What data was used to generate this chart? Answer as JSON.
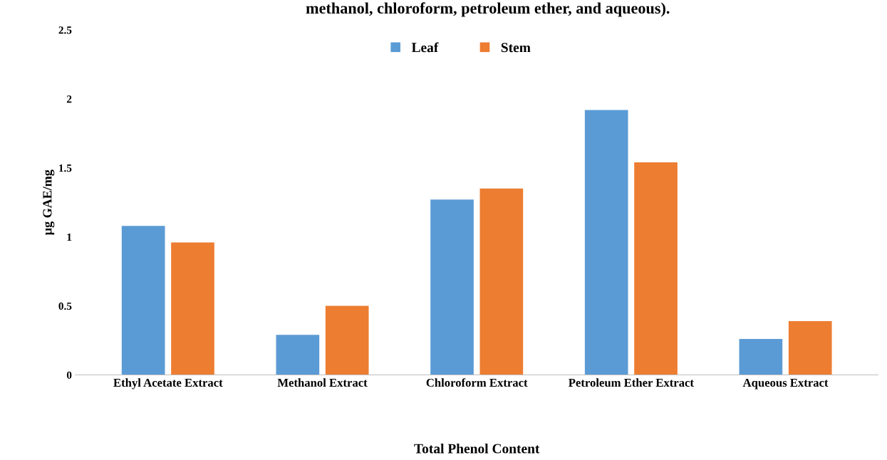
{
  "chart_data": {
    "type": "bar",
    "title": "methanol, chloroform, petroleum ether, and aqueous).",
    "xlabel": "Total Phenol Content",
    "ylabel": "µg GAE/mg",
    "categories": [
      "Ethyl Acetate Extract",
      "Methanol Extract",
      "Chloroform Extract",
      "Petroleum Ether Extract",
      "Aqueous Extract"
    ],
    "series": [
      {
        "name": "Leaf",
        "color": "#5b9bd5",
        "values": [
          1.08,
          0.29,
          1.27,
          1.92,
          0.26
        ]
      },
      {
        "name": "Stem",
        "color": "#ed7d31",
        "values": [
          0.96,
          0.5,
          1.35,
          1.54,
          0.39
        ]
      }
    ],
    "ylim": [
      0,
      2.5
    ],
    "yticks": [
      0,
      0.5,
      1,
      1.5,
      2,
      2.5
    ],
    "grid": false,
    "legend": "top"
  }
}
